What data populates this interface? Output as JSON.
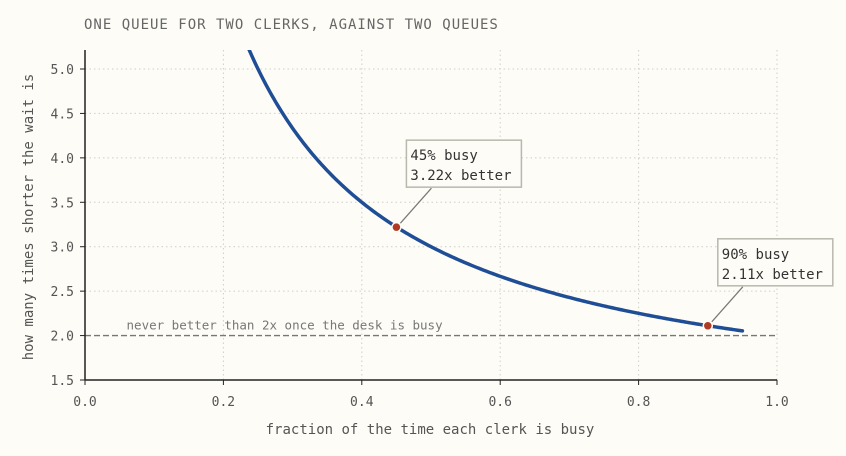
{
  "chart_data": {
    "type": "line",
    "title": "ONE QUEUE FOR TWO CLERKS, AGAINST TWO QUEUES",
    "xlabel": "fraction of the time each clerk is busy",
    "ylabel": "how many times shorter the wait is",
    "xlim": [
      0.0,
      1.0
    ],
    "ylim": [
      1.5,
      5.2
    ],
    "x_ticks": [
      0.0,
      0.2,
      0.4,
      0.6,
      0.8,
      1.0
    ],
    "x_tick_labels": [
      "0.0",
      "0.2",
      "0.4",
      "0.6",
      "0.8",
      "1.0"
    ],
    "y_ticks": [
      1.5,
      2.0,
      2.5,
      3.0,
      3.5,
      4.0,
      4.5,
      5.0
    ],
    "y_tick_labels": [
      "1.5",
      "2.0",
      "2.5",
      "3.0",
      "3.5",
      "4.0",
      "4.5",
      "5.0"
    ],
    "grid": true,
    "curve": {
      "formula": "y = 1 + 1/x",
      "x_start": 0.15,
      "x_end": 0.95,
      "color": "#1f4e96"
    },
    "reference_line": {
      "y": 2.0,
      "label": "never better than 2x once the desk is busy",
      "color": "#777777"
    },
    "highlights": [
      {
        "x": 0.45,
        "y": 3.22,
        "line1": "45% busy",
        "line2": "3.22x better",
        "color": "#b03a23"
      },
      {
        "x": 0.9,
        "y": 2.11,
        "line1": "90% busy",
        "line2": "2.11x better",
        "color": "#b03a23"
      }
    ]
  }
}
